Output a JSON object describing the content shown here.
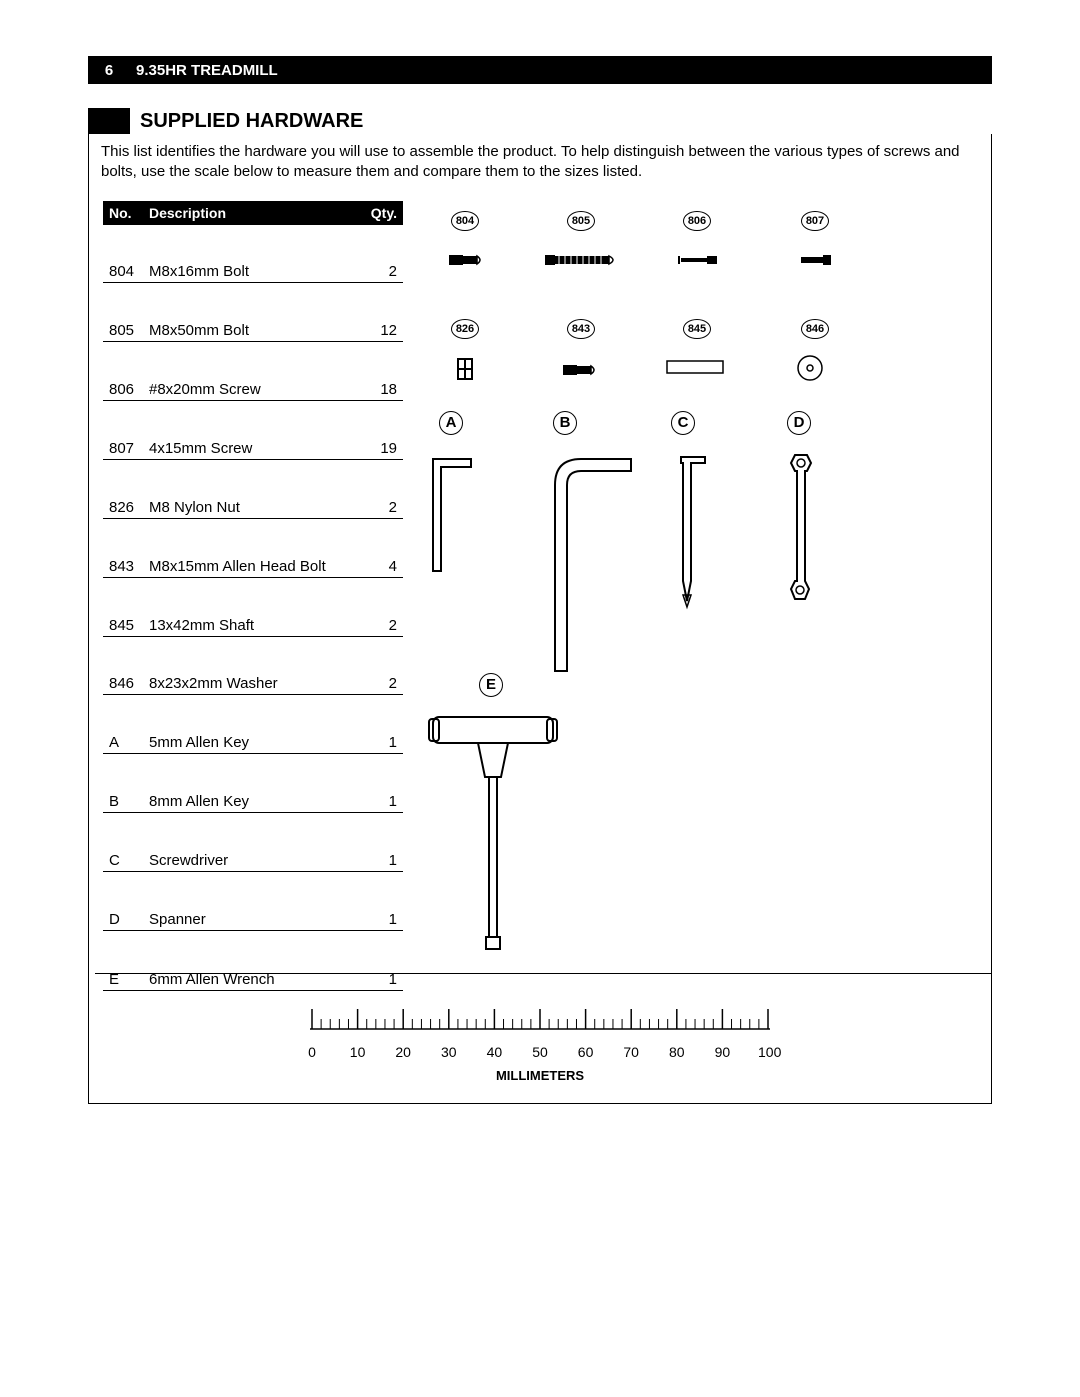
{
  "header": {
    "page_number": "6",
    "doc_title": "9.35HR TREADMILL"
  },
  "section_title": "SUPPLIED HARDWARE",
  "intro_text": "This list identifies the hardware you will use to assemble the product. To help distinguish between the various types of screws and bolts, use the scale below to measure them and compare them to the sizes listed.",
  "table": {
    "headers": {
      "no": "No.",
      "desc": "Description",
      "qty": "Qty."
    },
    "rows": [
      {
        "no": "804",
        "desc": "M8x16mm Bolt",
        "qty": "2"
      },
      {
        "no": "805",
        "desc": "M8x50mm Bolt",
        "qty": "12"
      },
      {
        "no": "806",
        "desc": "#8x20mm Screw",
        "qty": "18"
      },
      {
        "no": "807",
        "desc": "4x15mm Screw",
        "qty": "19"
      },
      {
        "no": "826",
        "desc": "M8 Nylon Nut",
        "qty": "2"
      },
      {
        "no": "843",
        "desc": "M8x15mm Allen Head Bolt",
        "qty": "4"
      },
      {
        "no": "845",
        "desc": "13x42mm Shaft",
        "qty": "2"
      },
      {
        "no": "846",
        "desc": "8x23x2mm Washer",
        "qty": "2"
      },
      {
        "no": "A",
        "desc": "5mm Allen Key",
        "qty": "1"
      },
      {
        "no": "B",
        "desc": "8mm Allen Key",
        "qty": "1"
      },
      {
        "no": "C",
        "desc": "Screwdriver",
        "qty": "1"
      },
      {
        "no": "D",
        "desc": "Spanner",
        "qty": "1"
      },
      {
        "no": "E",
        "desc": "6mm Allen Wrench",
        "qty": "1"
      }
    ]
  },
  "diagram": {
    "callouts_row1": [
      "804",
      "805",
      "806",
      "807"
    ],
    "callouts_row2": [
      "826",
      "843",
      "845",
      "846"
    ],
    "callouts_tools": [
      "A",
      "B",
      "C",
      "D"
    ],
    "callout_e": "E"
  },
  "ruler": {
    "ticks": [
      "0",
      "10",
      "20",
      "30",
      "40",
      "50",
      "60",
      "70",
      "80",
      "90",
      "100"
    ],
    "unit_label": "MILLIMETERS"
  },
  "colors": {
    "black": "#000000",
    "white": "#ffffff"
  }
}
